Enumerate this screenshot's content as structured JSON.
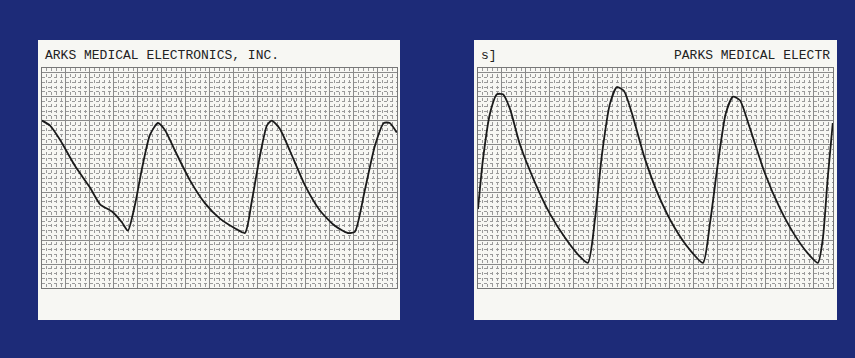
{
  "chart_data": [
    {
      "type": "line",
      "title": "ARKS MEDICAL ELECTRONICS, INC.",
      "x": [
        0,
        0.33,
        0.75,
        1.38,
        2.0,
        2.42,
        2.92,
        3.33,
        3.58,
        3.88,
        4.17,
        4.5,
        4.83,
        5.13,
        5.54,
        6.17,
        6.79,
        7.42,
        8.04,
        8.46,
        8.75,
        9.08,
        9.38,
        9.58,
        9.92,
        10.33,
        10.96,
        11.58,
        12.21,
        12.75,
        13.04,
        13.46,
        13.88,
        14.25,
        14.5,
        14.79
      ],
      "values": [
        7.0,
        6.8,
        6.2,
        5.1,
        4.2,
        3.5,
        3.2,
        2.75,
        2.4,
        3.5,
        5.0,
        6.4,
        6.9,
        6.6,
        5.75,
        4.5,
        3.55,
        2.9,
        2.5,
        2.3,
        3.65,
        5.5,
        6.8,
        7.0,
        6.65,
        5.75,
        4.3,
        3.25,
        2.6,
        2.3,
        2.35,
        4.1,
        5.95,
        6.9,
        6.9,
        6.5
      ],
      "color": "#1a1a1a",
      "xlim": [
        0,
        14.8
      ],
      "ylim": [
        0,
        9.2
      ],
      "xticks": [
        0,
        1,
        2,
        3,
        4,
        5,
        6,
        7,
        8,
        9,
        10,
        11,
        12,
        13,
        14
      ],
      "yticks": [
        0,
        1,
        2,
        3,
        4,
        5,
        6,
        7,
        8,
        9
      ],
      "grid": true,
      "tick_labels": false
    },
    {
      "type": "line",
      "title": "PARKS MEDICAL ELECTR",
      "annotations": [
        "s]"
      ],
      "x": [
        0,
        0.21,
        0.5,
        0.79,
        1.04,
        1.33,
        1.75,
        2.38,
        3.0,
        3.63,
        4.17,
        4.58,
        4.88,
        5.17,
        5.5,
        5.79,
        6.08,
        6.42,
        6.96,
        7.58,
        8.21,
        8.83,
        9.38,
        9.67,
        10.0,
        10.33,
        10.63,
        10.92,
        11.33,
        11.96,
        12.58,
        13.21,
        13.75,
        14.17,
        14.38,
        14.58,
        14.79
      ],
      "values": [
        3.3,
        5.4,
        7.3,
        8.1,
        8.1,
        7.5,
        6.0,
        4.4,
        3.1,
        2.1,
        1.4,
        1.05,
        2.9,
        5.6,
        7.7,
        8.4,
        8.25,
        7.3,
        5.4,
        3.75,
        2.5,
        1.6,
        1.05,
        2.7,
        5.2,
        7.3,
        8.0,
        7.85,
        6.7,
        4.8,
        3.35,
        2.2,
        1.45,
        1.05,
        2.1,
        4.6,
        6.9
      ],
      "color": "#1a1a1a",
      "xlim": [
        0,
        14.8
      ],
      "ylim": [
        0,
        9.2
      ],
      "xticks": [
        0,
        1,
        2,
        3,
        4,
        5,
        6,
        7,
        8,
        9,
        10,
        11,
        12,
        13,
        14
      ],
      "yticks": [
        0,
        1,
        2,
        3,
        4,
        5,
        6,
        7,
        8,
        9
      ],
      "grid": true,
      "tick_labels": false
    }
  ]
}
